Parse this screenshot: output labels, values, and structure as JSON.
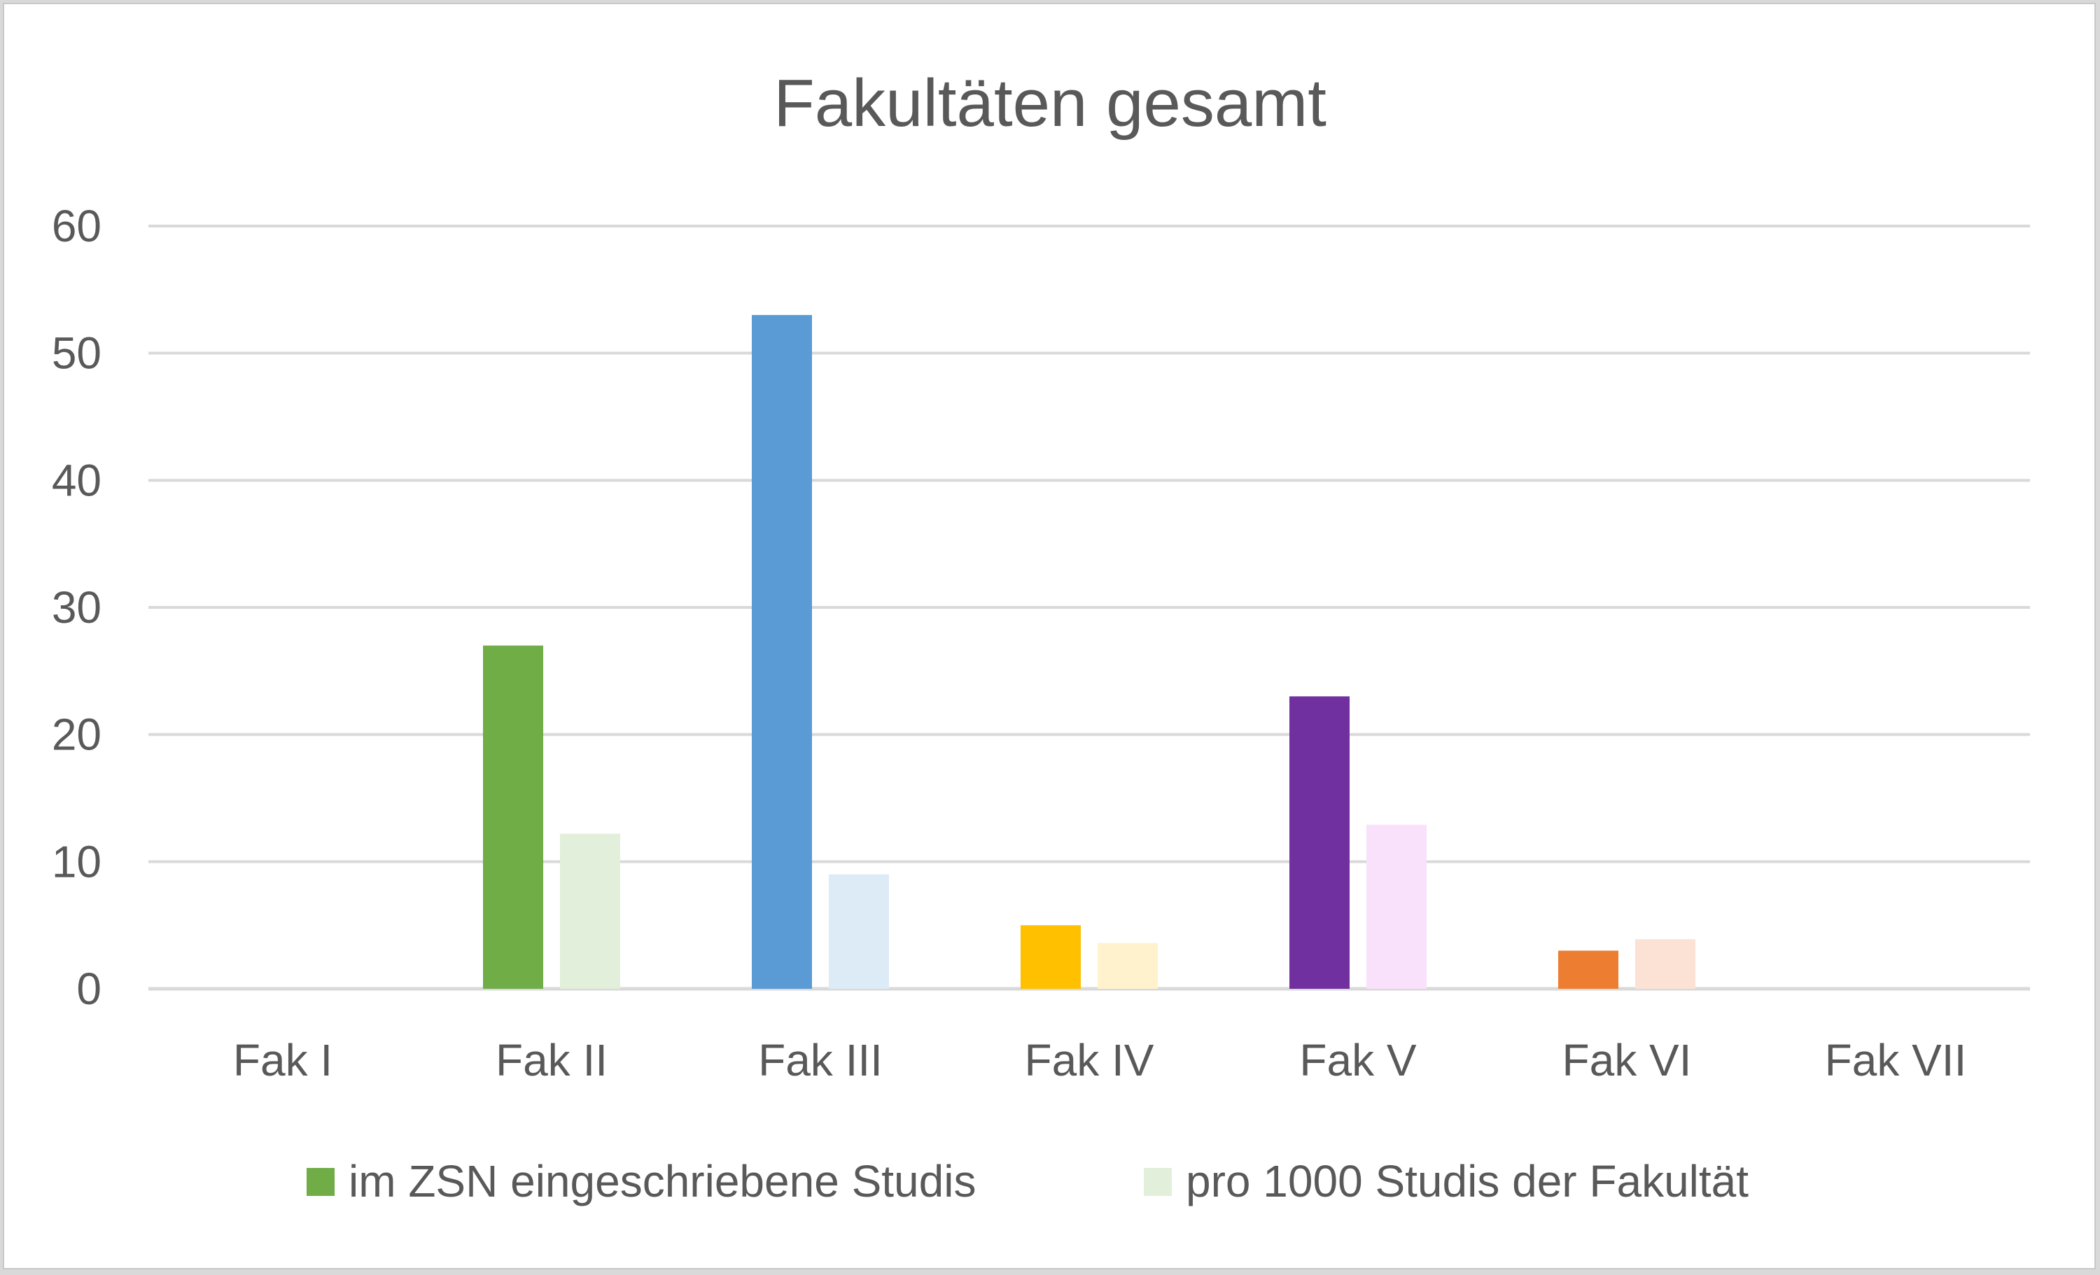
{
  "chart_data": {
    "type": "bar",
    "title": "Fakultäten gesamt",
    "xlabel": "",
    "ylabel": "",
    "ylim": [
      0,
      60
    ],
    "yticks": [
      "0",
      "10",
      "20",
      "30",
      "40",
      "50",
      "60"
    ],
    "grid": true,
    "legend_position": "bottom",
    "categories": [
      "Fak I",
      "Fak II",
      "Fak III",
      "Fak IV",
      "Fak V",
      "Fak VI",
      "Fak VII"
    ],
    "series": [
      {
        "name": "im ZSN eingeschriebene Studis",
        "values": [
          0,
          27,
          53,
          5,
          23,
          3,
          0
        ],
        "colors": [
          "#70ad47",
          "#70ad47",
          "#5b9bd5",
          "#ffc000",
          "#7030a0",
          "#ed7d31",
          "#808080"
        ],
        "legend_color": "#70ad47"
      },
      {
        "name": "pro 1000 Studis der Fakultät",
        "values": [
          0,
          12.2,
          9,
          3.6,
          12.9,
          3.9,
          0
        ],
        "colors": [
          "#e2efda",
          "#e2efda",
          "#ddebf7",
          "#fff2cc",
          "#f9e1fb",
          "#fbe2d5",
          "#ededed"
        ],
        "legend_color": "#e2efda"
      }
    ],
    "colors": {
      "gridline": "#d9d9d9",
      "axis_text": "#595959"
    }
  }
}
